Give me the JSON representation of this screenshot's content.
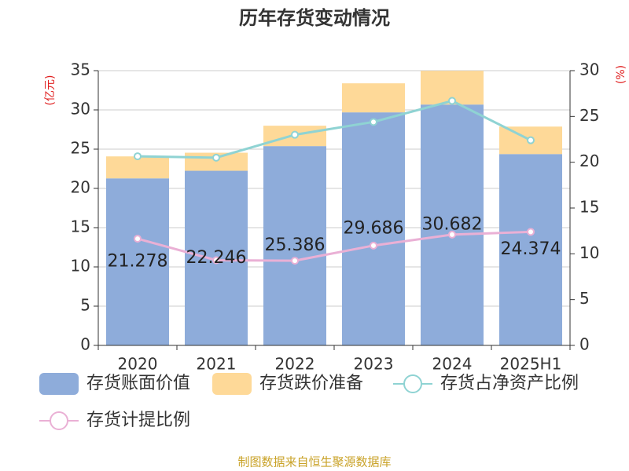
{
  "chart_data": {
    "type": "bar",
    "title": "历年存货变动情况",
    "ylabel": "(亿元)",
    "y2label": "(%)",
    "categories": [
      "2020",
      "2021",
      "2022",
      "2023",
      "2024",
      "2025H1"
    ],
    "series": [
      {
        "name": "存货账面价值",
        "type": "bar",
        "stack": true,
        "color": "#8eacda",
        "values": [
          21.278,
          22.246,
          25.386,
          29.686,
          30.682,
          24.374
        ],
        "labels": true
      },
      {
        "name": "存货跌价准备",
        "type": "bar",
        "stack": true,
        "color": "#fed998",
        "values": [
          2.8,
          2.3,
          2.6,
          3.7,
          4.3,
          3.5
        ]
      },
      {
        "name": "存货占净资产比例",
        "type": "line",
        "axis": "y2",
        "color": "#8fd3d3",
        "values": [
          20.65,
          20.5,
          23.0,
          24.4,
          26.7,
          22.4
        ]
      },
      {
        "name": "存货计提比例",
        "type": "line",
        "axis": "y2",
        "color": "#eab0d5",
        "values": [
          11.65,
          9.3,
          9.25,
          10.9,
          12.1,
          12.4
        ]
      }
    ],
    "ylim": [
      0,
      35
    ],
    "yticks": [
      0,
      5,
      10,
      15,
      20,
      25,
      30,
      35
    ],
    "y2lim": [
      0,
      30
    ],
    "y2ticks": [
      0,
      5,
      10,
      15,
      20,
      25,
      30
    ],
    "grid": true,
    "source": "制图数据来自恒生聚源数据库"
  }
}
